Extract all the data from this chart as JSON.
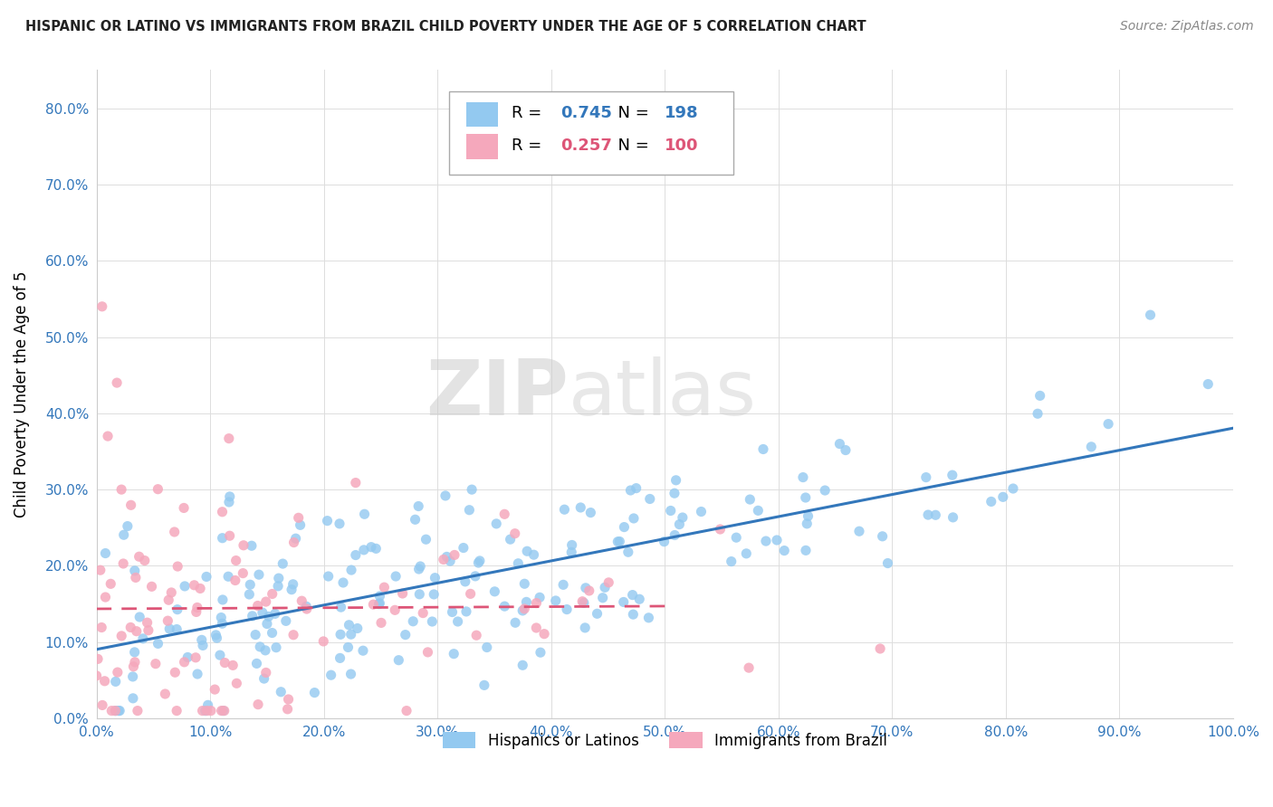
{
  "title": "HISPANIC OR LATINO VS IMMIGRANTS FROM BRAZIL CHILD POVERTY UNDER THE AGE OF 5 CORRELATION CHART",
  "source": "Source: ZipAtlas.com",
  "ylabel": "Child Poverty Under the Age of 5",
  "xlim": [
    0.0,
    1.0
  ],
  "ylim": [
    0.0,
    0.85
  ],
  "blue_R": 0.745,
  "blue_N": 198,
  "pink_R": 0.257,
  "pink_N": 100,
  "blue_color": "#93c9f0",
  "pink_color": "#f5a8bc",
  "blue_line_color": "#3377bb",
  "pink_line_color": "#dd5577",
  "watermark_zip": "ZIP",
  "watermark_atlas": "atlas",
  "legend_label_blue": "Hispanics or Latinos",
  "legend_label_pink": "Immigrants from Brazil",
  "background_color": "#ffffff",
  "title_color": "#222222",
  "source_color": "#888888",
  "tick_color": "#3377bb",
  "grid_color": "#dddddd"
}
